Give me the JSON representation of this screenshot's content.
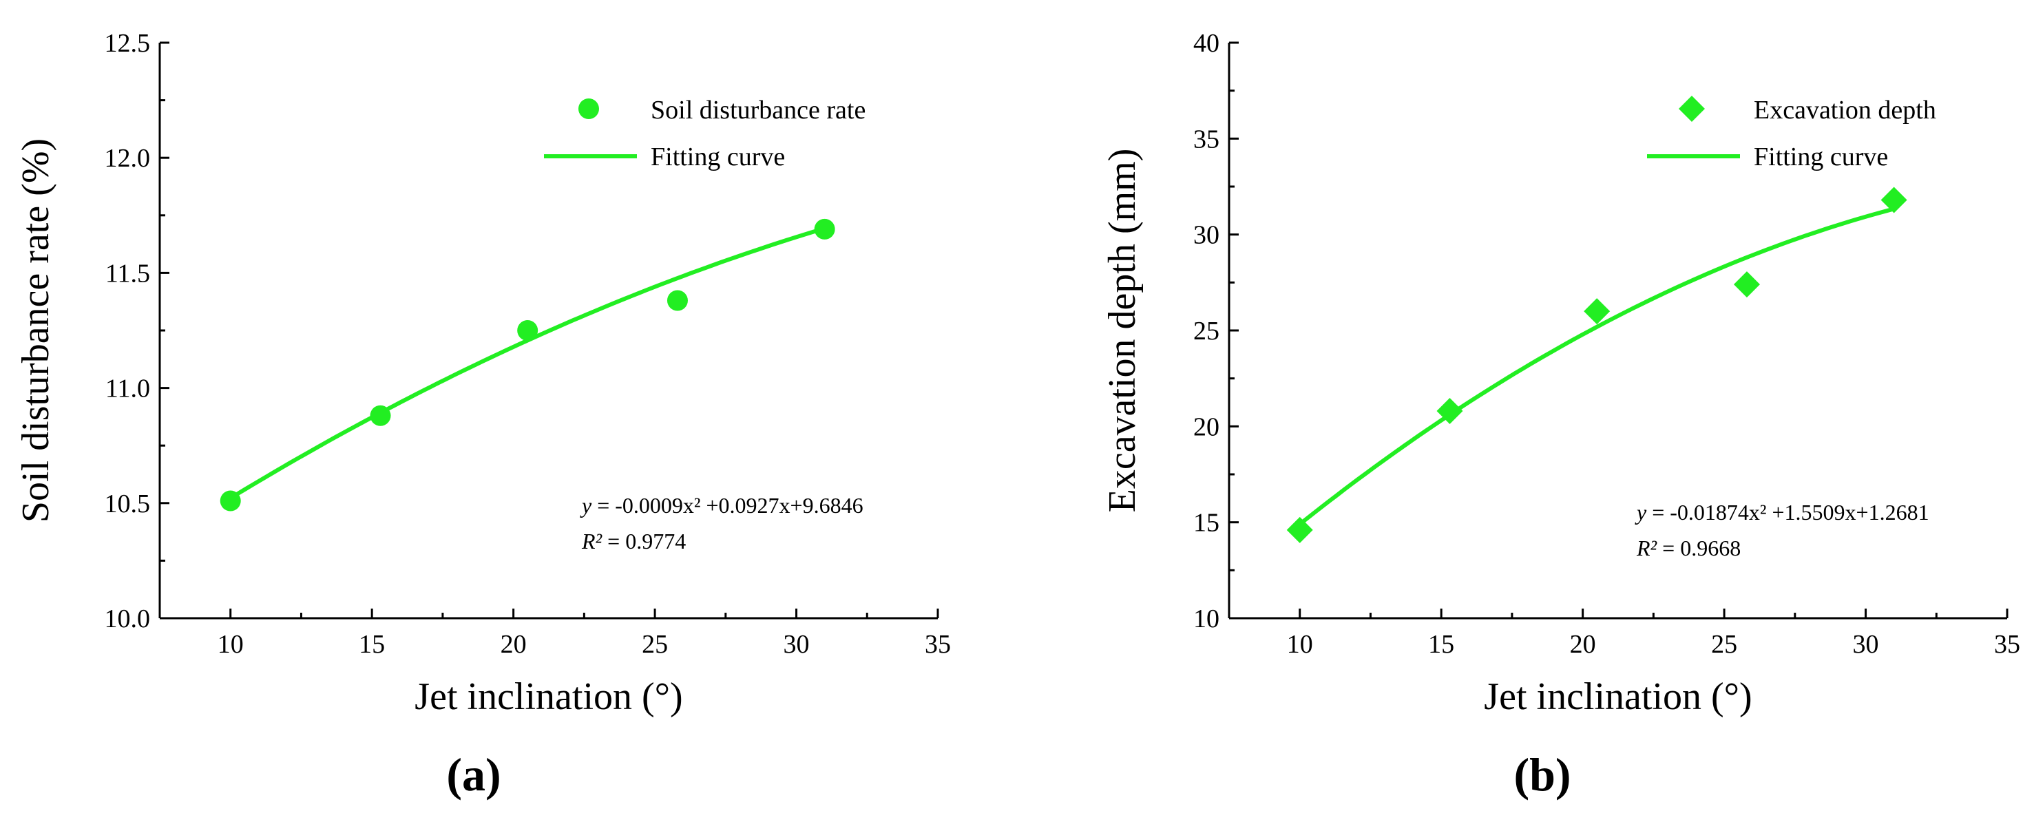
{
  "colors": {
    "series": "#22ee22",
    "axis": "#000000"
  },
  "chart_data": [
    {
      "type": "scatter",
      "panel": "(a)",
      "panel_letter": "a",
      "xlabel": "Jet inclination (°)",
      "ylabel": "Soil disturbance rate (%)",
      "xlim": [
        7.5,
        35
      ],
      "ylim": [
        10.0,
        12.5
      ],
      "xticks": [
        10,
        15,
        20,
        25,
        30,
        35
      ],
      "yticks": [
        10.0,
        10.5,
        11.0,
        11.5,
        12.0,
        12.5
      ],
      "ytick_labels": [
        "10.0",
        "10.5",
        "11.0",
        "11.5",
        "12.0",
        "12.5"
      ],
      "marker": "circle",
      "series": [
        {
          "name": "Soil disturbance rate",
          "x": [
            10,
            15.3,
            20.5,
            25.8,
            31
          ],
          "y": [
            10.51,
            10.88,
            11.25,
            11.38,
            11.69
          ]
        }
      ],
      "fit": {
        "name": "Fitting curve",
        "coef": [
          -0.0009,
          0.0927,
          9.6846
        ],
        "x_range": [
          10,
          31
        ]
      },
      "equation": {
        "prefix": "y",
        "body": " = -0.0009x² +0.0927x+9.6846"
      },
      "r2": {
        "prefix": "R²",
        "body": " = 0.9774"
      }
    },
    {
      "type": "scatter",
      "panel": "(b)",
      "panel_letter": "b",
      "xlabel": "Jet inclination (°)",
      "ylabel": "Excavation depth (mm)",
      "xlim": [
        7.5,
        35
      ],
      "ylim": [
        10,
        40
      ],
      "xticks": [
        10,
        15,
        20,
        25,
        30,
        35
      ],
      "yticks": [
        10,
        15,
        20,
        25,
        30,
        35,
        40
      ],
      "ytick_labels": [
        "10",
        "15",
        "20",
        "25",
        "30",
        "35",
        "40"
      ],
      "marker": "diamond",
      "series": [
        {
          "name": "Excavation depth",
          "x": [
            10,
            15.3,
            20.5,
            25.8,
            31
          ],
          "y": [
            14.6,
            20.8,
            26.0,
            27.4,
            31.8
          ]
        }
      ],
      "fit": {
        "name": "Fitting curve",
        "coef": [
          -0.01874,
          1.5509,
          1.2681
        ],
        "x_range": [
          10,
          31
        ]
      },
      "equation": {
        "prefix": "y",
        "body": " = -0.01874x² +1.5509x+1.2681"
      },
      "r2": {
        "prefix": "R²",
        "body": " = 0.9668"
      }
    }
  ]
}
